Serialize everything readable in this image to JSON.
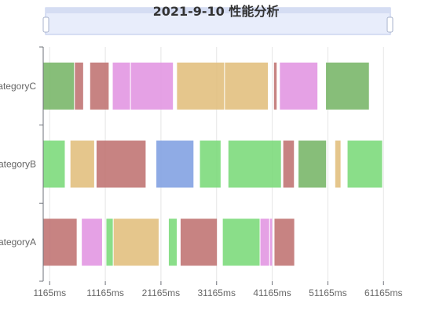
{
  "chart_data": {
    "type": "bar",
    "title": "2021-9-10 性能分析",
    "x_unit": "ms",
    "x_ticks": [
      "1165ms",
      "11165ms",
      "21165ms",
      "31165ms",
      "41165ms",
      "51165ms",
      "61165ms"
    ],
    "xlim": [
      0,
      62400
    ],
    "categories": [
      "categoryC",
      "categoryB",
      "categoryA"
    ],
    "colors": {
      "green": "#75d874",
      "darkgreen": "#72b362",
      "red": "#bd6d6c",
      "magenta": "#e090e0",
      "tan": "#e0bc78",
      "blue": "#7b9ce1"
    },
    "segments": [
      {
        "category": "categoryC",
        "start": 0,
        "end": 5540,
        "color": "darkgreen"
      },
      {
        "category": "categoryC",
        "start": 5690,
        "end": 7180,
        "color": "red"
      },
      {
        "category": "categoryC",
        "start": 8440,
        "end": 11770,
        "color": "red"
      },
      {
        "category": "categoryC",
        "start": 12500,
        "end": 15610,
        "color": "magenta"
      },
      {
        "category": "categoryC",
        "start": 15760,
        "end": 23320,
        "color": "magenta"
      },
      {
        "category": "categoryC",
        "start": 24050,
        "end": 32520,
        "color": "tan"
      },
      {
        "category": "categoryC",
        "start": 32660,
        "end": 40380,
        "color": "tan"
      },
      {
        "category": "categoryC",
        "start": 41480,
        "end": 41960,
        "color": "red"
      },
      {
        "category": "categoryC",
        "start": 42540,
        "end": 49290,
        "color": "magenta"
      },
      {
        "category": "categoryC",
        "start": 50830,
        "end": 58550,
        "color": "darkgreen"
      },
      {
        "category": "categoryB",
        "start": 0,
        "end": 3880,
        "color": "green"
      },
      {
        "category": "categoryB",
        "start": 4900,
        "end": 9160,
        "color": "tan"
      },
      {
        "category": "categoryB",
        "start": 9590,
        "end": 18410,
        "color": "red"
      },
      {
        "category": "categoryB",
        "start": 20340,
        "end": 27010,
        "color": "blue"
      },
      {
        "category": "categoryB",
        "start": 28170,
        "end": 31890,
        "color": "green"
      },
      {
        "category": "categoryB",
        "start": 33290,
        "end": 42740,
        "color": "green"
      },
      {
        "category": "categoryB",
        "start": 43150,
        "end": 45070,
        "color": "red"
      },
      {
        "category": "categoryB",
        "start": 45890,
        "end": 50850,
        "color": "darkgreen"
      },
      {
        "category": "categoryB",
        "start": 52490,
        "end": 53450,
        "color": "tan"
      },
      {
        "category": "categoryB",
        "start": 54710,
        "end": 60920,
        "color": "green"
      },
      {
        "category": "categoryA",
        "start": 0,
        "end": 6020,
        "color": "red"
      },
      {
        "category": "categoryA",
        "start": 6940,
        "end": 10580,
        "color": "magenta"
      },
      {
        "category": "categoryA",
        "start": 11360,
        "end": 12510,
        "color": "green"
      },
      {
        "category": "categoryA",
        "start": 12660,
        "end": 20750,
        "color": "tan"
      },
      {
        "category": "categoryA",
        "start": 22580,
        "end": 24010,
        "color": "green"
      },
      {
        "category": "categoryA",
        "start": 24700,
        "end": 31220,
        "color": "red"
      },
      {
        "category": "categoryA",
        "start": 32280,
        "end": 38900,
        "color": "green"
      },
      {
        "category": "categoryA",
        "start": 39040,
        "end": 40620,
        "color": "magenta"
      },
      {
        "category": "categoryA",
        "start": 40770,
        "end": 41160,
        "color": "magenta"
      },
      {
        "category": "categoryA",
        "start": 41570,
        "end": 45120,
        "color": "red"
      }
    ]
  }
}
